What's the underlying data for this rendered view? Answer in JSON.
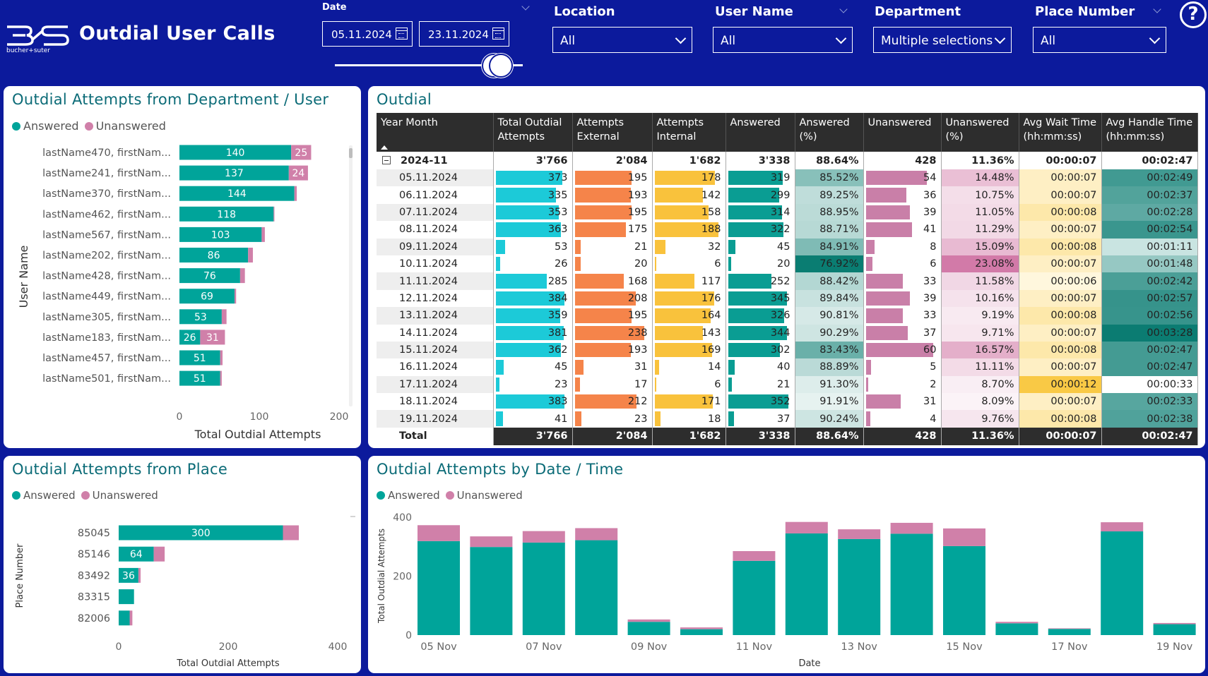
{
  "header": {
    "title": "Outdial User Calls",
    "logo_text": "bucher+suter",
    "date_label": "Date",
    "date_from": "05.11.2024",
    "date_to": "23.11.2024",
    "slicers": [
      {
        "label": "Location",
        "value": "All"
      },
      {
        "label": "User Name",
        "value": "All"
      },
      {
        "label": "Department",
        "value": "Multiple selections"
      },
      {
        "label": "Place Number",
        "value": "All"
      }
    ],
    "help": "?"
  },
  "colors": {
    "answered": "#00a49a",
    "unanswered": "#d080a9",
    "header": "#0c1a9c",
    "title": "#0b6b77"
  },
  "legend": {
    "answered": "Answered",
    "unanswered": "Unanswered"
  },
  "user_chart": {
    "title": "Outdial Attempts from Department / User",
    "chart_data": {
      "type": "bar",
      "orientation": "horizontal",
      "stacked": true,
      "categories": [
        "lastName470, firstNam...",
        "lastName241, firstNam...",
        "lastName370, firstNam...",
        "lastName462, firstNam...",
        "lastName567, firstNam...",
        "lastName202, firstNam...",
        "lastName428, firstNam...",
        "lastName449, firstNam...",
        "lastName305, firstNam...",
        "lastName183, firstNam...",
        "lastName457, firstNam...",
        "lastName501, firstNam..."
      ],
      "series": [
        {
          "name": "Answered",
          "values": [
            140,
            137,
            144,
            118,
            103,
            86,
            76,
            69,
            53,
            26,
            51,
            51
          ]
        },
        {
          "name": "Unanswered",
          "values": [
            25,
            24,
            3,
            1,
            4,
            6,
            6,
            2,
            6,
            31,
            3,
            2
          ]
        }
      ],
      "labels": [
        [
          "140",
          "25"
        ],
        [
          "137",
          "24"
        ],
        [
          "144",
          ""
        ],
        [
          "118",
          ""
        ],
        [
          "103",
          ""
        ],
        [
          "86",
          ""
        ],
        [
          "76",
          ""
        ],
        [
          "69",
          ""
        ],
        [
          "53",
          ""
        ],
        [
          "26",
          "31"
        ],
        [
          "51",
          ""
        ],
        [
          "51",
          ""
        ]
      ],
      "xlabel": "Total Outdial Attempts",
      "ylabel": "User Name",
      "xlim": [
        0,
        200
      ],
      "xticks": [
        "0",
        "100",
        "200"
      ]
    }
  },
  "place_chart": {
    "title": "Outdial Attempts from Place",
    "chart_data": {
      "type": "bar",
      "orientation": "horizontal",
      "stacked": true,
      "categories": [
        "85045",
        "85146",
        "83492",
        "83315",
        "82006"
      ],
      "series": [
        {
          "name": "Answered",
          "values": [
            300,
            64,
            36,
            28,
            20
          ]
        },
        {
          "name": "Unanswered",
          "values": [
            29,
            20,
            4,
            0,
            5
          ]
        }
      ],
      "labels": [
        "300",
        "64",
        "36",
        "",
        ""
      ],
      "xlabel": "Total Outdial Attempts",
      "ylabel": "Place Number",
      "xlim": [
        0,
        400
      ],
      "xticks": [
        "0",
        "200",
        "400"
      ]
    }
  },
  "time_chart": {
    "title": "Outdial Attempts by Date / Time",
    "chart_data": {
      "type": "bar",
      "stacked": true,
      "categories": [
        "05 Nov",
        "06 Nov",
        "07 Nov",
        "08 Nov",
        "09 Nov",
        "10 Nov",
        "11 Nov",
        "12 Nov",
        "13 Nov",
        "14 Nov",
        "15 Nov",
        "16 Nov",
        "17 Nov",
        "18 Nov",
        "19 Nov"
      ],
      "series": [
        {
          "name": "Answered",
          "values": [
            319,
            299,
            314,
            322,
            45,
            20,
            252,
            345,
            326,
            344,
            302,
            40,
            21,
            352,
            37
          ]
        },
        {
          "name": "Unanswered",
          "values": [
            54,
            36,
            39,
            41,
            8,
            6,
            33,
            39,
            33,
            37,
            60,
            5,
            2,
            31,
            4
          ]
        }
      ],
      "xticks": [
        "05 Nov",
        "07 Nov",
        "09 Nov",
        "11 Nov",
        "13 Nov",
        "15 Nov",
        "17 Nov",
        "19 Nov"
      ],
      "yticks": [
        "0",
        "200",
        "400"
      ],
      "ylim": [
        0,
        400
      ],
      "xlabel": "Date",
      "ylabel": "Total Outdial Attempts"
    }
  },
  "table": {
    "title": "Outdial",
    "columns": [
      "Year Month",
      "Total Outdial Attempts",
      "Attempts External",
      "Attempts Internal",
      "Answered",
      "Answered (%)",
      "Unanswered",
      "Unanswered (%)",
      "Avg Wait Time (hh:mm:ss)",
      "Avg Handle Time (hh:mm:ss)"
    ],
    "group": {
      "label": "2024-11",
      "values": [
        "3'766",
        "2'084",
        "1'682",
        "3'338",
        "88.64%",
        "428",
        "11.36%",
        "00:00:07",
        "00:02:47"
      ]
    },
    "rows": [
      {
        "date": "05.11.2024",
        "total": 373,
        "ext": 195,
        "int": 178,
        "ans": 319,
        "ansp": 85.52,
        "una": 54,
        "unap": 14.48,
        "wait": "00:00:07",
        "handle": "00:02:49",
        "waits": 7,
        "handles": 169
      },
      {
        "date": "06.11.2024",
        "total": 335,
        "ext": 193,
        "int": 142,
        "ans": 299,
        "ansp": 89.25,
        "una": 36,
        "unap": 10.75,
        "wait": "00:00:07",
        "handle": "00:02:37",
        "waits": 7,
        "handles": 157
      },
      {
        "date": "07.11.2024",
        "total": 353,
        "ext": 195,
        "int": 158,
        "ans": 314,
        "ansp": 88.95,
        "una": 39,
        "unap": 11.05,
        "wait": "00:00:08",
        "handle": "00:02:28",
        "waits": 8,
        "handles": 148
      },
      {
        "date": "08.11.2024",
        "total": 363,
        "ext": 175,
        "int": 188,
        "ans": 322,
        "ansp": 88.71,
        "una": 41,
        "unap": 11.29,
        "wait": "00:00:07",
        "handle": "00:02:54",
        "waits": 7,
        "handles": 174
      },
      {
        "date": "09.11.2024",
        "total": 53,
        "ext": 21,
        "int": 32,
        "ans": 45,
        "ansp": 84.91,
        "una": 8,
        "unap": 15.09,
        "wait": "00:00:08",
        "handle": "00:01:11",
        "waits": 8,
        "handles": 71
      },
      {
        "date": "10.11.2024",
        "total": 26,
        "ext": 20,
        "int": 6,
        "ans": 20,
        "ansp": 76.92,
        "una": 6,
        "unap": 23.08,
        "wait": "00:00:07",
        "handle": "00:01:48",
        "waits": 7,
        "handles": 108
      },
      {
        "date": "11.11.2024",
        "total": 285,
        "ext": 168,
        "int": 117,
        "ans": 252,
        "ansp": 88.42,
        "una": 33,
        "unap": 11.58,
        "wait": "00:00:06",
        "handle": "00:02:42",
        "waits": 6,
        "handles": 162
      },
      {
        "date": "12.11.2024",
        "total": 384,
        "ext": 208,
        "int": 176,
        "ans": 345,
        "ansp": 89.84,
        "una": 39,
        "unap": 10.16,
        "wait": "00:00:07",
        "handle": "00:02:57",
        "waits": 7,
        "handles": 177
      },
      {
        "date": "13.11.2024",
        "total": 359,
        "ext": 195,
        "int": 164,
        "ans": 326,
        "ansp": 90.81,
        "una": 33,
        "unap": 9.19,
        "wait": "00:00:08",
        "handle": "00:02:56",
        "waits": 8,
        "handles": 176
      },
      {
        "date": "14.11.2024",
        "total": 381,
        "ext": 238,
        "int": 143,
        "ans": 344,
        "ansp": 90.29,
        "una": 37,
        "unap": 9.71,
        "wait": "00:00:07",
        "handle": "00:03:28",
        "waits": 7,
        "handles": 208
      },
      {
        "date": "15.11.2024",
        "total": 362,
        "ext": 193,
        "int": 169,
        "ans": 302,
        "ansp": 83.43,
        "una": 60,
        "unap": 16.57,
        "wait": "00:00:08",
        "handle": "00:02:47",
        "waits": 8,
        "handles": 167
      },
      {
        "date": "16.11.2024",
        "total": 45,
        "ext": 31,
        "int": 14,
        "ans": 40,
        "ansp": 88.89,
        "una": 5,
        "unap": 11.11,
        "wait": "00:00:07",
        "handle": "00:02:47",
        "waits": 7,
        "handles": 167
      },
      {
        "date": "17.11.2024",
        "total": 23,
        "ext": 17,
        "int": 6,
        "ans": 21,
        "ansp": 91.3,
        "una": 2,
        "unap": 8.7,
        "wait": "00:00:12",
        "handle": "00:00:33",
        "waits": 12,
        "handles": 33
      },
      {
        "date": "18.11.2024",
        "total": 383,
        "ext": 212,
        "int": 171,
        "ans": 352,
        "ansp": 91.91,
        "una": 31,
        "unap": 8.09,
        "wait": "00:00:07",
        "handle": "00:02:33",
        "waits": 7,
        "handles": 153
      },
      {
        "date": "19.11.2024",
        "total": 41,
        "ext": 23,
        "int": 18,
        "ans": 37,
        "ansp": 90.24,
        "una": 4,
        "unap": 9.76,
        "wait": "00:00:08",
        "handle": "00:02:38",
        "waits": 8,
        "handles": 158
      }
    ],
    "total": {
      "label": "Total",
      "values": [
        "3'766",
        "2'084",
        "1'682",
        "3'338",
        "88.64%",
        "428",
        "11.36%",
        "00:00:07",
        "00:02:47"
      ]
    }
  }
}
